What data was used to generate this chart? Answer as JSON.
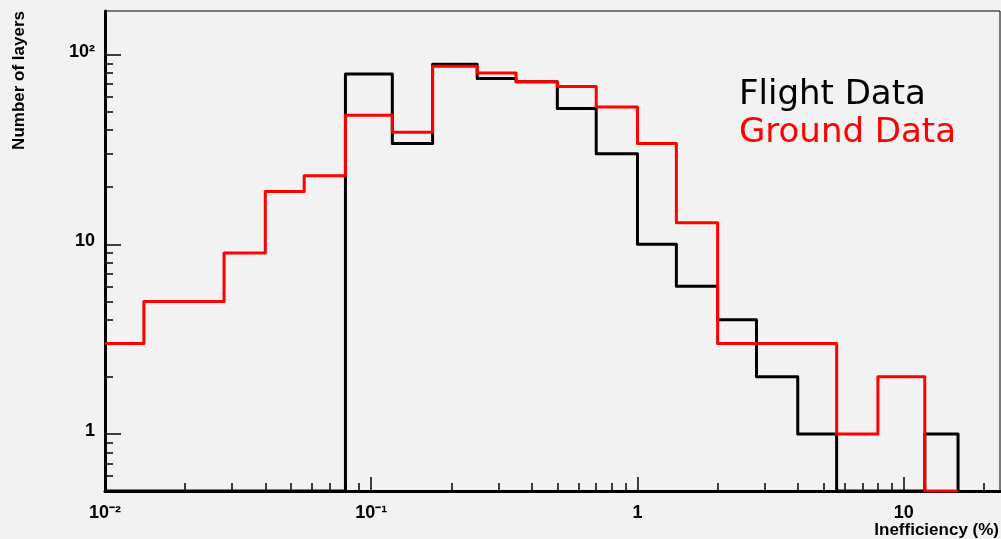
{
  "chart_data": {
    "type": "histogram",
    "xlabel": "Inefficiency (%)",
    "ylabel": "Number of layers",
    "log": "xy",
    "grid": false,
    "legend": "top right",
    "bins": [
      0.01,
      0.014,
      0.02,
      0.028,
      0.04,
      0.056,
      0.08,
      0.12,
      0.17,
      0.25,
      0.35,
      0.5,
      0.7,
      1,
      1.4,
      2,
      2.8,
      4,
      5.6,
      8,
      12,
      16
    ],
    "series": [
      {
        "name": "Flight Data",
        "color": "#000000",
        "values": [
          null,
          null,
          null,
          null,
          null,
          null,
          79,
          34,
          89,
          75,
          72,
          52,
          30,
          10,
          6,
          4,
          2,
          1,
          null,
          null,
          1
        ]
      },
      {
        "name": "Ground Data",
        "color": "#ff0000",
        "values": [
          3,
          5,
          5,
          9,
          19,
          23,
          48,
          39,
          87,
          80,
          72,
          68,
          53,
          34,
          13,
          3,
          3,
          3,
          1,
          2,
          null
        ]
      }
    ],
    "xlim": [
      0.01,
      23
    ],
    "ylim": [
      0.5,
      170
    ],
    "xticks": [
      {
        "value": 0.01,
        "label": "10⁻²"
      },
      {
        "value": 0.1,
        "label": "10⁻¹"
      },
      1,
      10
    ],
    "yticks": [
      1,
      10,
      {
        "value": 100,
        "label": "10²"
      }
    ]
  }
}
